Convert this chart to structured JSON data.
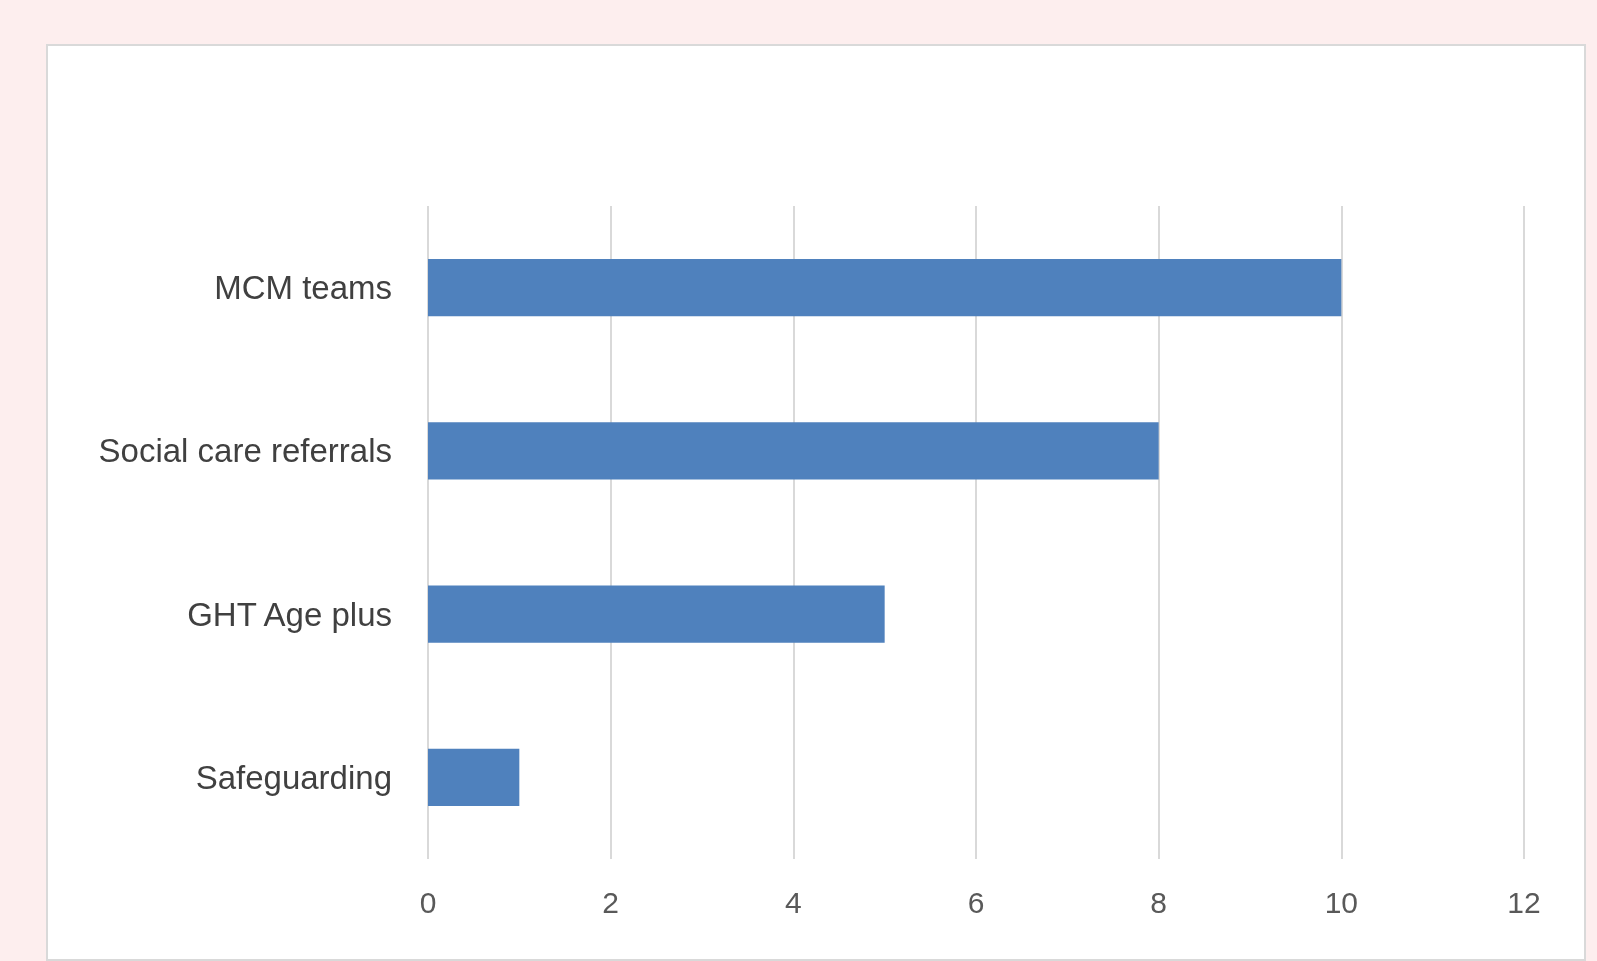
{
  "chart_data": {
    "type": "bar",
    "orientation": "horizontal",
    "categories": [
      "MCM teams",
      "Social care referrals",
      "GHT Age plus",
      "Safeguarding"
    ],
    "values": [
      10,
      8,
      5,
      1
    ],
    "color": "#4f81bd",
    "xlim": [
      0,
      12
    ],
    "xticks": [
      0,
      2,
      4,
      6,
      8,
      10,
      12
    ],
    "grid": "x"
  }
}
